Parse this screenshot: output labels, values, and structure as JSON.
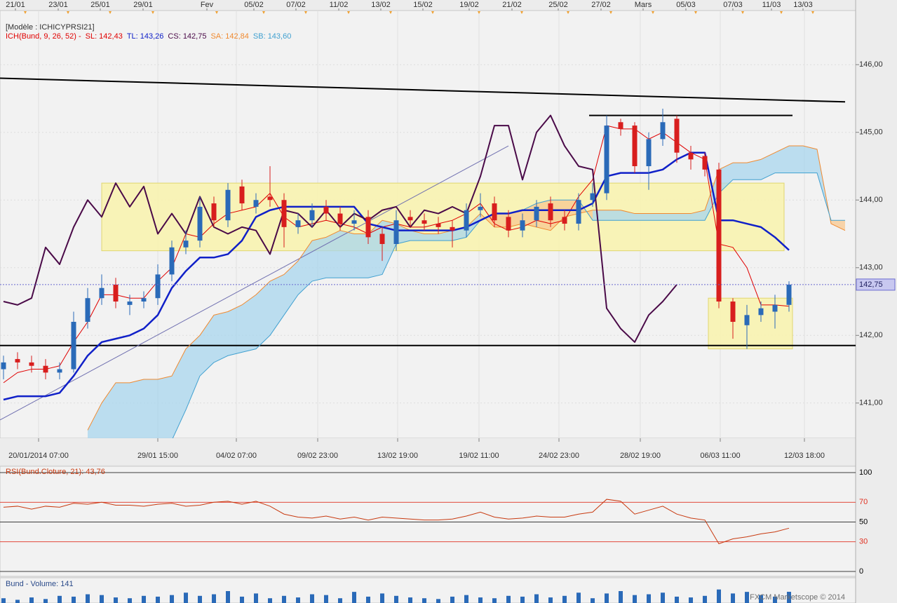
{
  "chart_data": [
    {
      "type": "candlestick",
      "legend_header": "[Modèle : ICHICYPRSI21]",
      "legend_prefix": "ICH(Bund, 9, 26, 52) -",
      "legend_prefix_color": "#e00000",
      "up_color": "#2a6ab8",
      "down_color": "#d81e1e",
      "open": [
        141.5,
        141.65,
        141.6,
        141.55,
        141.45,
        141.5,
        142.2,
        142.55,
        142.75,
        142.45,
        142.5,
        142.55,
        142.9,
        143.3,
        143.4,
        143.95,
        143.7,
        144.2,
        143.9,
        144.05,
        144.0,
        143.6,
        143.7,
        143.9,
        143.8,
        143.65,
        143.75,
        143.5,
        143.35,
        143.75,
        143.7,
        143.65,
        143.6,
        143.55,
        143.85,
        143.95,
        143.75,
        143.55,
        143.7,
        143.95,
        143.75,
        143.65,
        144.0,
        144.1,
        145.15,
        145.1,
        144.5,
        144.9,
        145.2,
        144.7,
        144.65,
        144.45,
        142.5,
        142.15,
        142.3,
        142.35,
        142.45
      ],
      "high": [
        141.7,
        141.75,
        141.7,
        141.65,
        141.6,
        142.35,
        142.7,
        142.9,
        142.85,
        142.6,
        142.65,
        143.05,
        143.4,
        143.55,
        144.05,
        144.05,
        144.25,
        144.3,
        144.1,
        144.5,
        144.1,
        143.8,
        143.95,
        144.0,
        143.9,
        143.85,
        143.85,
        143.6,
        143.85,
        143.85,
        143.8,
        143.75,
        143.7,
        143.95,
        144.1,
        144.05,
        143.85,
        143.8,
        144.0,
        144.05,
        143.85,
        144.1,
        144.25,
        145.25,
        145.2,
        145.15,
        145.0,
        145.35,
        145.25,
        144.8,
        144.7,
        144.55,
        142.55,
        142.45,
        142.5,
        142.6,
        142.8
      ],
      "low": [
        141.35,
        141.5,
        141.45,
        141.35,
        141.35,
        141.45,
        142.1,
        142.45,
        142.4,
        142.3,
        142.4,
        142.45,
        142.8,
        143.2,
        143.3,
        143.6,
        143.6,
        143.85,
        143.8,
        143.9,
        143.3,
        143.5,
        143.6,
        143.7,
        143.55,
        143.55,
        143.35,
        143.1,
        143.25,
        143.6,
        143.55,
        143.5,
        143.3,
        143.45,
        143.75,
        143.6,
        143.45,
        143.45,
        143.6,
        143.6,
        143.55,
        143.55,
        143.9,
        144.0,
        144.95,
        144.4,
        144.15,
        144.8,
        144.55,
        144.45,
        144.35,
        142.4,
        141.95,
        141.8,
        142.2,
        142.1,
        142.35
      ],
      "close": [
        141.6,
        141.6,
        141.55,
        141.45,
        141.5,
        142.2,
        142.55,
        142.7,
        142.5,
        142.5,
        142.55,
        142.9,
        143.3,
        143.4,
        143.9,
        143.7,
        144.15,
        143.95,
        144.0,
        144.0,
        143.6,
        143.7,
        143.85,
        143.8,
        143.65,
        143.7,
        143.45,
        143.35,
        143.7,
        143.7,
        143.65,
        143.6,
        143.55,
        143.85,
        143.9,
        143.7,
        143.55,
        143.7,
        143.9,
        143.7,
        143.65,
        144.0,
        144.1,
        145.1,
        145.05,
        144.5,
        144.9,
        145.15,
        144.7,
        144.6,
        144.45,
        142.5,
        142.2,
        142.3,
        142.4,
        142.45,
        142.75
      ],
      "series": [
        {
          "legend_label": "SL: 142,43",
          "color": "#e00000",
          "width": 1,
          "values": [
            141.3,
            141.45,
            141.5,
            141.5,
            141.55,
            141.9,
            142.2,
            142.6,
            142.6,
            142.55,
            142.55,
            142.8,
            143.0,
            143.5,
            143.45,
            143.65,
            143.8,
            143.85,
            143.9,
            144.1,
            143.75,
            143.6,
            143.65,
            143.7,
            143.65,
            143.6,
            143.5,
            143.6,
            143.65,
            143.6,
            143.6,
            143.65,
            143.7,
            143.8,
            143.95,
            143.65,
            143.55,
            143.6,
            143.7,
            143.65,
            143.7,
            144.05,
            144.3,
            145.1,
            145.05,
            145.05,
            144.9,
            145.0,
            144.85,
            144.7,
            144.6,
            143.35,
            143.3,
            143.0,
            142.45,
            142.45,
            142.43,
            null,
            null,
            null,
            null
          ]
        },
        {
          "legend_label": "TL: 143,26",
          "color": "#1020c8",
          "width": 2.5,
          "values": [
            141.05,
            141.1,
            141.1,
            141.1,
            141.15,
            141.4,
            141.7,
            141.9,
            141.95,
            142.0,
            142.1,
            142.3,
            142.7,
            142.95,
            143.15,
            143.15,
            143.2,
            143.4,
            143.75,
            143.85,
            143.9,
            143.9,
            143.9,
            143.9,
            143.9,
            143.9,
            143.65,
            143.6,
            143.55,
            143.55,
            143.55,
            143.55,
            143.55,
            143.6,
            143.7,
            143.8,
            143.8,
            143.85,
            143.85,
            143.85,
            143.85,
            143.85,
            143.95,
            144.35,
            144.4,
            144.4,
            144.4,
            144.45,
            144.6,
            144.7,
            144.7,
            143.7,
            143.7,
            143.65,
            143.6,
            143.45,
            143.26,
            null,
            null,
            null,
            null
          ]
        },
        {
          "legend_label": "CS: 142,75",
          "color": "#4a0a48",
          "width": 2,
          "values": [
            142.5,
            142.45,
            142.55,
            143.3,
            143.05,
            143.6,
            144.0,
            143.75,
            144.25,
            143.9,
            144.2,
            143.5,
            143.8,
            143.5,
            144.05,
            143.6,
            143.5,
            143.6,
            143.55,
            143.2,
            143.85,
            143.8,
            143.6,
            143.85,
            143.6,
            143.8,
            143.7,
            143.85,
            143.9,
            143.6,
            143.85,
            143.8,
            143.9,
            143.8,
            144.35,
            145.1,
            145.1,
            144.3,
            145.0,
            145.25,
            144.8,
            144.5,
            144.45,
            142.4,
            142.1,
            141.9,
            142.3,
            142.5,
            142.75,
            null,
            null,
            null,
            null,
            null,
            null,
            null,
            null,
            null,
            null,
            null,
            null
          ]
        },
        {
          "legend_label": "SA: 142,84",
          "color": "#f08a30",
          "width": 1,
          "values": [
            null,
            null,
            null,
            null,
            null,
            null,
            140.6,
            141.0,
            141.3,
            141.3,
            141.35,
            141.35,
            141.4,
            141.8,
            142.0,
            142.3,
            142.35,
            142.45,
            142.6,
            142.8,
            142.9,
            143.1,
            143.4,
            143.45,
            143.55,
            143.5,
            143.5,
            143.7,
            143.65,
            143.55,
            143.5,
            143.5,
            143.55,
            143.6,
            143.8,
            143.6,
            143.6,
            143.65,
            143.6,
            143.55,
            143.75,
            143.8,
            143.85,
            143.85,
            143.85,
            143.8,
            143.8,
            143.8,
            143.8,
            143.8,
            143.85,
            144.45,
            144.55,
            144.55,
            144.6,
            144.7,
            144.8,
            144.8,
            144.75,
            143.65,
            143.55
          ]
        },
        {
          "legend_label": "SB: 143,60",
          "color": "#40a0d0",
          "width": 1,
          "values": [
            null,
            null,
            null,
            null,
            null,
            null,
            140.4,
            140.4,
            140.4,
            140.4,
            140.4,
            140.4,
            140.45,
            140.9,
            141.4,
            141.6,
            141.7,
            141.75,
            141.8,
            142.0,
            142.3,
            142.6,
            142.8,
            142.85,
            142.85,
            142.85,
            142.85,
            142.9,
            143.35,
            143.4,
            143.4,
            143.4,
            143.4,
            143.45,
            143.7,
            143.8,
            143.8,
            143.85,
            143.95,
            144.0,
            144.0,
            144.0,
            143.7,
            143.7,
            143.7,
            143.7,
            143.7,
            143.7,
            143.7,
            143.7,
            143.7,
            144.1,
            144.3,
            144.3,
            144.3,
            144.4,
            144.4,
            144.4,
            144.4,
            143.7,
            143.7
          ]
        }
      ],
      "cloud_colors": [
        "#a8d6ee",
        "#f8c890"
      ],
      "zones": [
        {
          "x": [
            7,
            55.65
          ],
          "y": [
            143.25,
            144.25
          ],
          "color": "#f8f3b0"
        },
        {
          "x": [
            50.25,
            56.25
          ],
          "y": [
            141.8,
            142.55
          ],
          "color": "#f8f3b0"
        }
      ],
      "trendlines": [
        {
          "x": [
            -0.25,
            60
          ],
          "y": [
            145.8,
            145.45
          ],
          "color": "#000000",
          "width": 2
        },
        {
          "x": [
            41.75,
            56.25
          ],
          "y": [
            145.25,
            145.25
          ],
          "color": "#000000",
          "width": 2
        },
        {
          "x": [
            -0.25,
            60.75
          ],
          "y": [
            141.85,
            141.85
          ],
          "color": "#000000",
          "width": 2
        },
        {
          "x": [
            -0.25,
            36
          ],
          "y": [
            140.75,
            144.8
          ],
          "color": "#7070b0",
          "width": 1
        }
      ],
      "last_price": 142.75,
      "last_price_label": "142,75",
      "xlim": [
        -0.25,
        60.75
      ],
      "ylim": [
        140.48,
        146.8
      ],
      "yticks": [
        {
          "value": 141,
          "label": "141,00"
        },
        {
          "value": 142,
          "label": "142,00"
        },
        {
          "value": 143,
          "label": "143,00"
        },
        {
          "value": 144,
          "label": "144,00"
        },
        {
          "value": 145,
          "label": "145,00"
        },
        {
          "value": 146,
          "label": "146,00"
        }
      ],
      "xticks": [
        {
          "value": 2.5,
          "label": "20/01/2014 07:00"
        },
        {
          "value": 11,
          "label": "29/01 15:00"
        },
        {
          "value": 16.6,
          "label": "04/02 07:00"
        },
        {
          "value": 22.4,
          "label": "09/02 23:00"
        },
        {
          "value": 28.1,
          "label": "13/02 19:00"
        },
        {
          "value": 33.9,
          "label": "19/02 11:00"
        },
        {
          "value": 39.6,
          "label": "24/02 23:00"
        },
        {
          "value": 45.4,
          "label": "28/02 19:00"
        },
        {
          "value": 51.1,
          "label": "06/03 11:00"
        },
        {
          "value": 57.1,
          "label": "12/03 18:00"
        }
      ],
      "top_xticks": [
        {
          "value": 0.85,
          "label": "21/01"
        },
        {
          "value": 3.9,
          "label": "23/01"
        },
        {
          "value": 6.9,
          "label": "25/01"
        },
        {
          "value": 9.95,
          "label": "29/01"
        },
        {
          "value": 14.5,
          "label": "Fev"
        },
        {
          "value": 17.85,
          "label": "05/02"
        },
        {
          "value": 20.85,
          "label": "07/02"
        },
        {
          "value": 23.9,
          "label": "11/02"
        },
        {
          "value": 26.9,
          "label": "13/02"
        },
        {
          "value": 29.9,
          "label": "15/02"
        },
        {
          "value": 33.2,
          "label": "19/02"
        },
        {
          "value": 36.25,
          "label": "21/02"
        },
        {
          "value": 39.55,
          "label": "25/02"
        },
        {
          "value": 42.6,
          "label": "27/02"
        },
        {
          "value": 45.6,
          "label": "Mars"
        },
        {
          "value": 48.65,
          "label": "05/03"
        },
        {
          "value": 52,
          "label": "07/03"
        },
        {
          "value": 54.75,
          "label": "11/03"
        },
        {
          "value": 57,
          "label": "13/03"
        }
      ],
      "grid": true
    },
    {
      "type": "line",
      "title": "RSI(Bund.Cloture, 21): 43,76",
      "color": "#c83a10",
      "values": [
        65,
        66,
        63,
        66,
        65,
        69,
        68,
        70,
        67,
        67,
        66,
        68,
        69,
        66,
        67,
        70,
        71,
        68,
        71,
        66,
        58,
        55,
        54,
        56,
        53,
        55,
        52,
        55,
        54,
        53,
        52,
        52,
        53,
        56,
        60,
        55,
        53,
        54,
        56,
        55,
        55,
        58,
        60,
        73,
        71,
        58,
        62,
        66,
        58,
        54,
        52,
        28,
        33,
        35,
        38,
        40,
        43.76,
        null,
        null,
        null,
        null
      ],
      "ylim": [
        0,
        100
      ],
      "yticks": [
        100,
        70,
        50,
        30,
        0
      ],
      "ytick_colors": [
        "#000000",
        "#e03020",
        "#000000",
        "#e03020",
        "#000000"
      ]
    },
    {
      "type": "bar",
      "title": "Bund - Volume: 141",
      "watermark": "FXCM Marketscope © 2014",
      "color": "#2a6ab8",
      "values": [
        60,
        40,
        70,
        50,
        90,
        80,
        110,
        100,
        70,
        60,
        90,
        80,
        100,
        130,
        90,
        110,
        150,
        80,
        120,
        60,
        90,
        70,
        110,
        100,
        60,
        140,
        80,
        120,
        90,
        70,
        60,
        50,
        80,
        100,
        70,
        60,
        90,
        80,
        110,
        70,
        90,
        130,
        60,
        120,
        150,
        100,
        110,
        130,
        80,
        70,
        90,
        170,
        120,
        140,
        100,
        80,
        141
      ],
      "ylim": [
        0,
        300
      ]
    }
  ]
}
